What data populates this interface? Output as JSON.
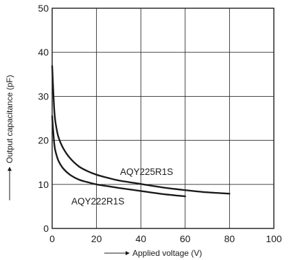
{
  "chart_data": {
    "type": "line",
    "title": "",
    "xlabel": "Applied voltage (V)",
    "ylabel": "Output capacitance (pF)",
    "xlim": [
      0,
      100
    ],
    "ylim": [
      0,
      50
    ],
    "x_ticks": [
      0,
      20,
      40,
      60,
      80,
      100
    ],
    "y_ticks": [
      0,
      10,
      20,
      30,
      40,
      50
    ],
    "grid": true,
    "legend": "none (series labelled directly on curves)",
    "series": [
      {
        "name": "AQY225R1S",
        "x": [
          0,
          1,
          2,
          3,
          5,
          8,
          12,
          16,
          20,
          25,
          30,
          40,
          50,
          60,
          70,
          80
        ],
        "values": [
          36.9,
          26.5,
          22.6,
          20.5,
          18.2,
          16.0,
          14.1,
          13.0,
          12.2,
          11.5,
          10.9,
          10.1,
          9.3,
          8.7,
          8.2,
          7.9
        ]
      },
      {
        "name": "AQY222R1S",
        "x": [
          0,
          1,
          2,
          3,
          5,
          8,
          12,
          16,
          20,
          25,
          30,
          40,
          50,
          60
        ],
        "values": [
          25.5,
          19.0,
          16.6,
          15.2,
          13.6,
          12.2,
          11.1,
          10.5,
          10.0,
          9.6,
          9.2,
          8.5,
          7.8,
          7.3
        ]
      }
    ]
  }
}
